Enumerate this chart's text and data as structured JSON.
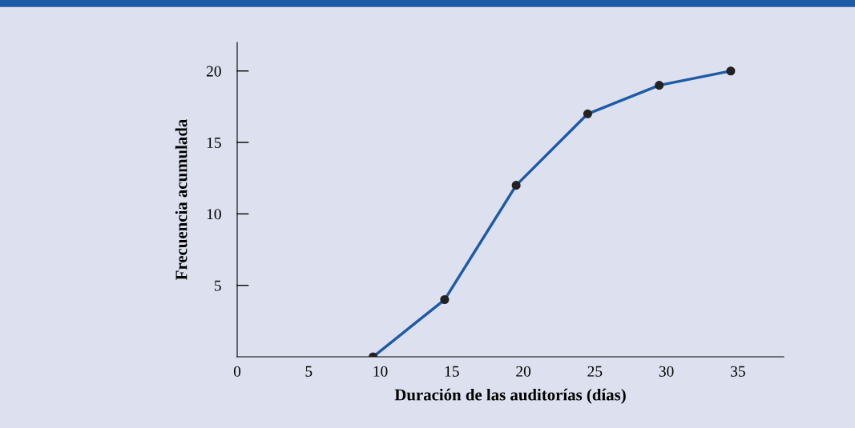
{
  "chart_data": {
    "type": "line",
    "xlabel": "Duración de las auditorías (días)",
    "ylabel": "Frecuencia acumulada",
    "x": [
      9.5,
      14.5,
      19.5,
      24.5,
      29.5,
      34.5
    ],
    "series": [
      {
        "color": "#1f5aa6",
        "values": [
          0,
          4,
          12,
          17,
          19,
          20
        ]
      }
    ],
    "xlim": [
      0,
      38.2
    ],
    "xticks": [
      0,
      5,
      10,
      15,
      20,
      25,
      30,
      35
    ],
    "ylim": [
      0,
      22
    ],
    "yticks": [
      5,
      10,
      15,
      20
    ],
    "marker": "circle",
    "line_style": "solid"
  }
}
